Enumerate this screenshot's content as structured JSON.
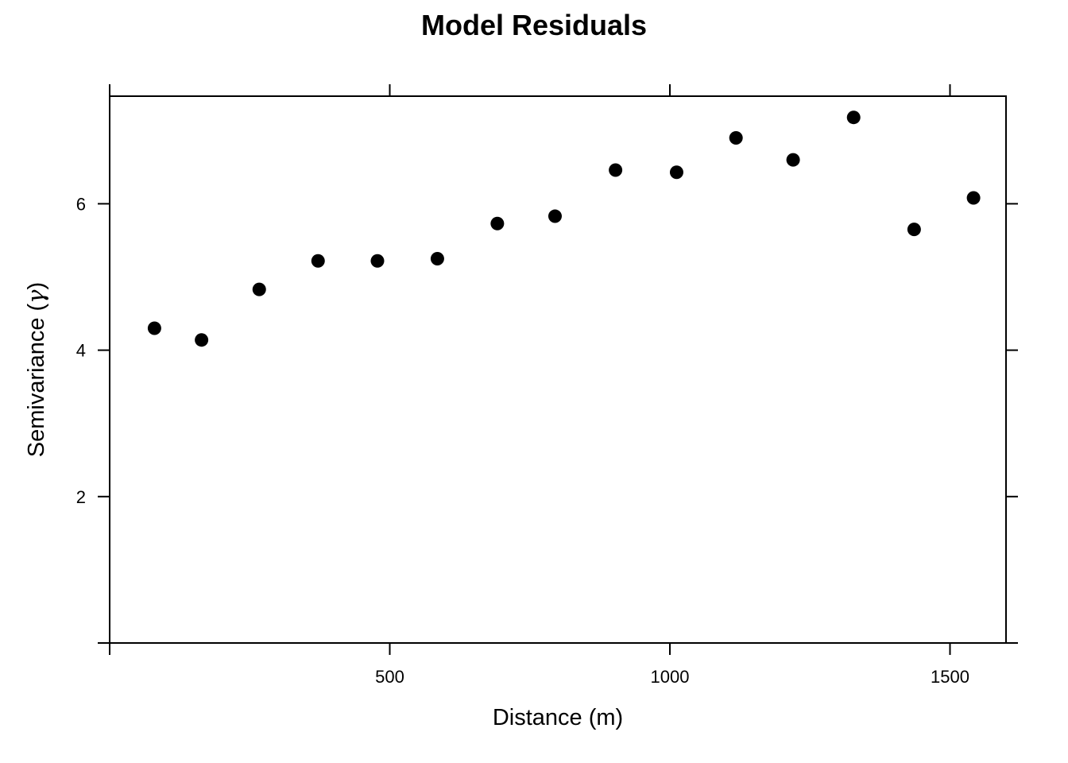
{
  "chart_data": {
    "type": "scatter",
    "title": "Model Residuals",
    "xlabel": "Distance (m)",
    "ylabel_prefix": "Semivariance (",
    "ylabel_symbol": "γ",
    "ylabel_suffix": ")",
    "xlim": [
      0,
      1600
    ],
    "ylim": [
      0,
      7.47
    ],
    "x_ticks": [
      500,
      1000,
      1500
    ],
    "y_ticks": [
      2,
      4,
      6
    ],
    "grid": false,
    "series": [
      {
        "color": "#000000",
        "points": [
          {
            "x": 80,
            "y": 4.3
          },
          {
            "x": 164,
            "y": 4.14
          },
          {
            "x": 267,
            "y": 4.83
          },
          {
            "x": 372,
            "y": 5.22
          },
          {
            "x": 478,
            "y": 5.22
          },
          {
            "x": 585,
            "y": 5.25
          },
          {
            "x": 692,
            "y": 5.73
          },
          {
            "x": 795,
            "y": 5.83
          },
          {
            "x": 903,
            "y": 6.46
          },
          {
            "x": 1012,
            "y": 6.43
          },
          {
            "x": 1118,
            "y": 6.9
          },
          {
            "x": 1220,
            "y": 6.6
          },
          {
            "x": 1328,
            "y": 7.18
          },
          {
            "x": 1436,
            "y": 5.65
          },
          {
            "x": 1542,
            "y": 6.08
          }
        ]
      }
    ]
  }
}
